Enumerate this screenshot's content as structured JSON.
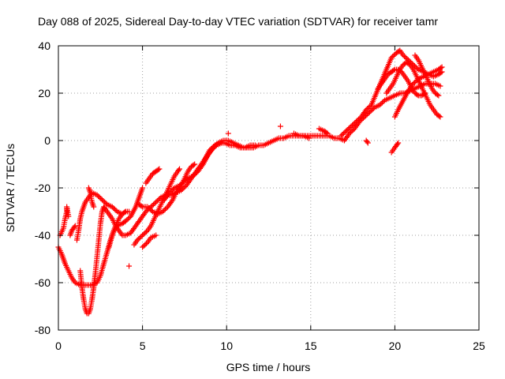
{
  "chart_data": {
    "type": "scatter",
    "title": "Day 088 of 2025, Sidereal Day-to-day VTEC variation (SDTVAR) for receiver tamr",
    "xlabel": "GPS time / hours",
    "ylabel": "SDTVAR / TECUs",
    "xlim": [
      0,
      25
    ],
    "ylim": [
      -80,
      40
    ],
    "xticks": [
      0,
      5,
      10,
      15,
      20,
      25
    ],
    "yticks": [
      -80,
      -60,
      -40,
      -20,
      0,
      20,
      40
    ],
    "xtick_labels": [
      "0",
      "5",
      "10",
      "15",
      "20",
      "25"
    ],
    "ytick_labels": [
      "-80",
      "-60",
      "-40",
      "-20",
      "0",
      "20",
      "40"
    ],
    "grid": true,
    "marker": "+",
    "color": "#ff0000",
    "series": [
      {
        "values": [
          [
            0.0,
            -45
          ],
          [
            0.2,
            -48
          ],
          [
            0.4,
            -52
          ],
          [
            0.6,
            -55
          ],
          [
            0.8,
            -58
          ],
          [
            1.0,
            -60
          ],
          [
            1.3,
            -61
          ],
          [
            1.6,
            -61
          ],
          [
            2.0,
            -61
          ],
          [
            2.3,
            -60
          ],
          [
            2.5,
            -57
          ],
          [
            2.7,
            -52
          ],
          [
            2.9,
            -47
          ],
          [
            3.1,
            -42
          ],
          [
            3.3,
            -38
          ],
          [
            3.5,
            -36
          ],
          [
            3.8,
            -35
          ],
          [
            4.0,
            -34
          ],
          [
            4.3,
            -32
          ],
          [
            4.6,
            -28
          ],
          [
            4.8,
            -24
          ],
          [
            5.0,
            -20
          ]
        ]
      },
      {
        "values": [
          [
            0.1,
            -40
          ],
          [
            0.3,
            -37
          ],
          [
            0.4,
            -33
          ],
          [
            0.5,
            -30
          ],
          [
            0.5,
            -28
          ],
          [
            0.6,
            -32
          ]
        ]
      },
      {
        "values": [
          [
            0.7,
            -40
          ],
          [
            0.8,
            -38
          ],
          [
            0.9,
            -37
          ],
          [
            1.0,
            -36
          ]
        ]
      },
      {
        "values": [
          [
            1.1,
            -42
          ],
          [
            1.2,
            -38
          ],
          [
            1.3,
            -33
          ],
          [
            1.4,
            -30
          ],
          [
            1.5,
            -28
          ],
          [
            1.6,
            -26
          ],
          [
            1.8,
            -24
          ],
          [
            2.0,
            -22
          ],
          [
            2.3,
            -23
          ],
          [
            2.6,
            -25
          ],
          [
            2.9,
            -27
          ],
          [
            3.2,
            -28
          ],
          [
            3.5,
            -30
          ],
          [
            3.8,
            -31
          ],
          [
            4.0,
            -30
          ]
        ]
      },
      {
        "values": [
          [
            1.3,
            -55
          ],
          [
            1.4,
            -62
          ],
          [
            1.5,
            -67
          ],
          [
            1.6,
            -71
          ],
          [
            1.7,
            -73
          ],
          [
            1.8,
            -73
          ],
          [
            1.9,
            -71
          ],
          [
            2.0,
            -67
          ],
          [
            2.1,
            -62
          ],
          [
            2.2,
            -56
          ],
          [
            2.3,
            -49
          ],
          [
            2.4,
            -42
          ],
          [
            2.5,
            -35
          ],
          [
            2.6,
            -30
          ],
          [
            2.7,
            -28
          ],
          [
            2.8,
            -29
          ],
          [
            3.0,
            -31
          ],
          [
            3.2,
            -33
          ],
          [
            3.4,
            -36
          ],
          [
            3.6,
            -38
          ],
          [
            3.8,
            -40
          ],
          [
            4.0,
            -40
          ],
          [
            4.3,
            -39
          ],
          [
            4.6,
            -36
          ],
          [
            4.9,
            -33
          ],
          [
            5.2,
            -30
          ],
          [
            5.5,
            -28
          ],
          [
            5.8,
            -26
          ],
          [
            6.1,
            -24
          ],
          [
            6.4,
            -23
          ],
          [
            6.7,
            -23
          ],
          [
            7.0,
            -22
          ],
          [
            7.3,
            -21
          ],
          [
            7.6,
            -19
          ],
          [
            7.9,
            -16
          ],
          [
            8.2,
            -13
          ],
          [
            8.5,
            -10
          ],
          [
            8.8,
            -7
          ],
          [
            9.1,
            -4
          ],
          [
            9.4,
            -2
          ],
          [
            9.7,
            -1
          ]
        ]
      },
      {
        "values": [
          [
            1.8,
            -20
          ],
          [
            1.9,
            -22
          ],
          [
            2.0,
            -26
          ],
          [
            2.1,
            -28
          ]
        ]
      },
      {
        "values": [
          [
            3.0,
            -45
          ],
          [
            3.2,
            -40
          ],
          [
            3.4,
            -36
          ],
          [
            3.6,
            -33
          ],
          [
            3.8,
            -31
          ],
          [
            4.0,
            -30
          ],
          [
            4.2,
            -30
          ]
        ]
      },
      {
        "values": [
          [
            4.2,
            -53
          ]
        ]
      },
      {
        "values": [
          [
            4.5,
            -44
          ],
          [
            4.7,
            -42
          ],
          [
            5.0,
            -40
          ],
          [
            5.3,
            -38
          ],
          [
            5.5,
            -36
          ],
          [
            5.7,
            -33
          ],
          [
            5.9,
            -30
          ],
          [
            6.1,
            -27
          ],
          [
            6.3,
            -24
          ],
          [
            6.5,
            -21
          ],
          [
            6.7,
            -18
          ],
          [
            6.9,
            -15
          ],
          [
            7.1,
            -13
          ],
          [
            7.2,
            -12
          ]
        ]
      },
      {
        "values": [
          [
            5.0,
            -45
          ],
          [
            5.3,
            -43
          ],
          [
            5.5,
            -41
          ],
          [
            5.8,
            -40
          ]
        ]
      },
      {
        "values": [
          [
            4.8,
            -27
          ],
          [
            5.0,
            -28
          ],
          [
            5.3,
            -28
          ],
          [
            5.6,
            -30
          ],
          [
            5.9,
            -31
          ],
          [
            6.2,
            -30
          ],
          [
            6.5,
            -28
          ],
          [
            6.8,
            -25
          ],
          [
            7.0,
            -22
          ],
          [
            7.3,
            -19
          ],
          [
            7.5,
            -16
          ],
          [
            7.7,
            -13
          ],
          [
            7.9,
            -11
          ],
          [
            8.1,
            -10
          ]
        ]
      },
      {
        "values": [
          [
            5.2,
            -18
          ],
          [
            5.4,
            -16
          ],
          [
            5.6,
            -14
          ],
          [
            5.8,
            -13
          ],
          [
            6.0,
            -12
          ]
        ]
      },
      {
        "values": [
          [
            6.3,
            -25
          ],
          [
            6.6,
            -22
          ],
          [
            6.9,
            -20
          ],
          [
            7.2,
            -19
          ],
          [
            7.5,
            -17
          ],
          [
            7.7,
            -16
          ],
          [
            8.0,
            -15
          ],
          [
            8.3,
            -13
          ],
          [
            8.6,
            -10
          ],
          [
            8.9,
            -6
          ],
          [
            9.2,
            -3
          ],
          [
            9.5,
            -1
          ],
          [
            9.8,
            0
          ],
          [
            10.1,
            0
          ],
          [
            10.4,
            -1
          ],
          [
            10.7,
            -2
          ],
          [
            11.0,
            -3
          ],
          [
            11.3,
            -3
          ],
          [
            11.6,
            -3
          ],
          [
            11.9,
            -2
          ],
          [
            12.2,
            -2
          ],
          [
            12.5,
            -1
          ],
          [
            12.8,
            0
          ],
          [
            13.1,
            1
          ],
          [
            13.4,
            1
          ],
          [
            13.7,
            2
          ],
          [
            14.0,
            2
          ],
          [
            14.3,
            2
          ],
          [
            14.6,
            2
          ],
          [
            14.9,
            2
          ],
          [
            15.2,
            2
          ],
          [
            15.5,
            2
          ],
          [
            15.8,
            2
          ],
          [
            16.1,
            2
          ],
          [
            16.4,
            1
          ],
          [
            16.7,
            1
          ],
          [
            17.0,
            0
          ],
          [
            17.3,
            3
          ],
          [
            17.6,
            5
          ],
          [
            17.9,
            8
          ],
          [
            18.2,
            10
          ],
          [
            18.5,
            12
          ],
          [
            18.8,
            14
          ],
          [
            19.1,
            15
          ],
          [
            19.4,
            17
          ],
          [
            19.7,
            18
          ],
          [
            20.0,
            19
          ],
          [
            20.3,
            20
          ],
          [
            20.6,
            20
          ],
          [
            20.9,
            21
          ],
          [
            21.2,
            22
          ],
          [
            21.5,
            23
          ],
          [
            21.8,
            24
          ],
          [
            22.1,
            24
          ],
          [
            22.4,
            24
          ],
          [
            22.7,
            23
          ]
        ]
      },
      {
        "values": [
          [
            8.7,
            -8
          ],
          [
            9.0,
            -4
          ],
          [
            9.3,
            -2
          ],
          [
            9.6,
            -1
          ],
          [
            9.9,
            -1
          ],
          [
            10.2,
            -2
          ],
          [
            10.5,
            -2
          ],
          [
            10.8,
            -3
          ],
          [
            11.1,
            -3
          ],
          [
            11.4,
            -2
          ],
          [
            11.7,
            -2
          ]
        ]
      },
      {
        "values": [
          [
            10.1,
            3
          ]
        ]
      },
      {
        "values": [
          [
            13.2,
            6
          ]
        ]
      },
      {
        "values": [
          [
            14.0,
            3
          ],
          [
            14.3,
            2
          ],
          [
            14.6,
            2
          ],
          [
            14.9,
            1
          ]
        ]
      },
      {
        "values": [
          [
            15.5,
            5
          ],
          [
            15.8,
            4
          ],
          [
            16.0,
            3
          ]
        ]
      },
      {
        "values": [
          [
            16.8,
            2
          ],
          [
            17.1,
            4
          ],
          [
            17.4,
            6
          ],
          [
            17.7,
            8
          ],
          [
            18.0,
            10
          ],
          [
            18.3,
            13
          ],
          [
            18.6,
            15
          ],
          [
            18.9,
            20
          ],
          [
            19.2,
            25
          ],
          [
            19.5,
            30
          ],
          [
            19.8,
            35
          ],
          [
            20.1,
            37
          ],
          [
            20.3,
            38
          ],
          [
            20.5,
            36
          ],
          [
            20.8,
            34
          ],
          [
            21.1,
            32
          ],
          [
            21.4,
            30
          ],
          [
            21.7,
            29
          ],
          [
            22.0,
            28
          ],
          [
            22.3,
            27
          ],
          [
            22.6,
            28
          ],
          [
            22.8,
            29
          ]
        ]
      },
      {
        "values": [
          [
            18.3,
            0
          ],
          [
            18.4,
            -1
          ]
        ]
      },
      {
        "values": [
          [
            19.0,
            22
          ],
          [
            19.2,
            24
          ],
          [
            19.4,
            26
          ],
          [
            19.6,
            28
          ],
          [
            19.8,
            29
          ],
          [
            20.0,
            30
          ],
          [
            20.2,
            30
          ],
          [
            20.4,
            29
          ],
          [
            20.6,
            27
          ],
          [
            20.8,
            25
          ],
          [
            21.0,
            22
          ],
          [
            21.2,
            20
          ],
          [
            21.4,
            19
          ],
          [
            21.6,
            19
          ],
          [
            21.8,
            20
          ]
        ]
      },
      {
        "values": [
          [
            19.5,
            20
          ],
          [
            19.7,
            22
          ],
          [
            19.9,
            24
          ],
          [
            20.1,
            27
          ],
          [
            20.3,
            30
          ],
          [
            20.5,
            32
          ],
          [
            20.7,
            33
          ],
          [
            20.9,
            32
          ],
          [
            21.1,
            30
          ],
          [
            21.3,
            27
          ],
          [
            21.5,
            24
          ],
          [
            21.7,
            21
          ],
          [
            21.9,
            18
          ],
          [
            22.1,
            15
          ],
          [
            22.3,
            13
          ],
          [
            22.5,
            11
          ],
          [
            22.7,
            10
          ]
        ]
      },
      {
        "values": [
          [
            20.0,
            10
          ],
          [
            20.2,
            13
          ],
          [
            20.5,
            17
          ],
          [
            20.8,
            21
          ],
          [
            21.1,
            24
          ],
          [
            21.4,
            26
          ],
          [
            21.7,
            27
          ],
          [
            22.0,
            28
          ],
          [
            22.3,
            29
          ],
          [
            22.6,
            30
          ],
          [
            22.8,
            31
          ]
        ]
      },
      {
        "values": [
          [
            19.8,
            -5
          ],
          [
            20.0,
            -3
          ],
          [
            20.1,
            -2
          ],
          [
            20.2,
            -1
          ]
        ]
      },
      {
        "values": [
          [
            21.2,
            36
          ],
          [
            21.4,
            34
          ],
          [
            21.6,
            31
          ],
          [
            21.8,
            28
          ],
          [
            22.0,
            25
          ],
          [
            22.2,
            22
          ],
          [
            22.4,
            20
          ],
          [
            22.6,
            19
          ]
        ]
      }
    ]
  }
}
